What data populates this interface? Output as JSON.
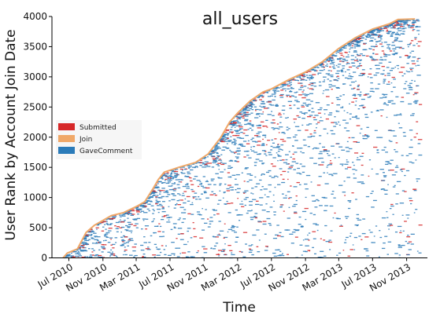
{
  "chart_data": {
    "type": "scatter",
    "title": "all_users",
    "xlabel": "Time",
    "ylabel": "User Rank by Account Join Date",
    "x_range": [
      "2010-05-01",
      "2014-01-15"
    ],
    "ylim": [
      0,
      4000
    ],
    "y_ticks": [
      0,
      500,
      1000,
      1500,
      2000,
      2500,
      3000,
      3500,
      4000
    ],
    "x_ticks": [
      {
        "date": "2010-07-01",
        "label": "Jul 2010"
      },
      {
        "date": "2010-11-01",
        "label": "Nov 2010"
      },
      {
        "date": "2011-03-01",
        "label": "Mar 2011"
      },
      {
        "date": "2011-07-01",
        "label": "Jul 2011"
      },
      {
        "date": "2011-11-01",
        "label": "Nov 2011"
      },
      {
        "date": "2012-03-01",
        "label": "Mar 2012"
      },
      {
        "date": "2012-07-01",
        "label": "Jul 2012"
      },
      {
        "date": "2012-11-01",
        "label": "Nov 2012"
      },
      {
        "date": "2013-03-01",
        "label": "Mar 2013"
      },
      {
        "date": "2013-07-01",
        "label": "Jul 2013"
      },
      {
        "date": "2013-11-01",
        "label": "Nov 2013"
      }
    ],
    "legend": {
      "placement": "center-left",
      "entries": [
        {
          "label": "Submitted",
          "color": "#d62728"
        },
        {
          "label": "Join",
          "color": "#f0a868"
        },
        {
          "label": "GaveComment",
          "color": "#2b7bb9"
        }
      ]
    },
    "grid": false,
    "series": [
      {
        "name": "Join",
        "color": "#f0a868",
        "points": [
          {
            "x": "2010-06-10",
            "y": 0
          },
          {
            "x": "2010-06-25",
            "y": 80
          },
          {
            "x": "2010-08-01",
            "y": 150
          },
          {
            "x": "2010-09-01",
            "y": 420
          },
          {
            "x": "2010-10-01",
            "y": 540
          },
          {
            "x": "2010-11-01",
            "y": 620
          },
          {
            "x": "2010-12-01",
            "y": 700
          },
          {
            "x": "2011-01-15",
            "y": 750
          },
          {
            "x": "2011-03-01",
            "y": 850
          },
          {
            "x": "2011-04-01",
            "y": 930
          },
          {
            "x": "2011-05-01",
            "y": 1150
          },
          {
            "x": "2011-05-20",
            "y": 1300
          },
          {
            "x": "2011-06-10",
            "y": 1420
          },
          {
            "x": "2011-08-01",
            "y": 1500
          },
          {
            "x": "2011-10-01",
            "y": 1580
          },
          {
            "x": "2011-11-15",
            "y": 1720
          },
          {
            "x": "2012-01-01",
            "y": 2000
          },
          {
            "x": "2012-02-01",
            "y": 2250
          },
          {
            "x": "2012-03-01",
            "y": 2400
          },
          {
            "x": "2012-04-15",
            "y": 2600
          },
          {
            "x": "2012-06-01",
            "y": 2750
          },
          {
            "x": "2012-07-01",
            "y": 2800
          },
          {
            "x": "2012-09-01",
            "y": 2950
          },
          {
            "x": "2012-11-01",
            "y": 3080
          },
          {
            "x": "2013-01-01",
            "y": 3250
          },
          {
            "x": "2013-03-01",
            "y": 3470
          },
          {
            "x": "2013-05-01",
            "y": 3650
          },
          {
            "x": "2013-07-01",
            "y": 3790
          },
          {
            "x": "2013-09-01",
            "y": 3880
          },
          {
            "x": "2013-10-01",
            "y": 3950
          },
          {
            "x": "2013-12-01",
            "y": 3960
          }
        ]
      },
      {
        "name": "Submitted",
        "color": "#d62728",
        "points": []
      },
      {
        "name": "GaveComment",
        "color": "#2b7bb9",
        "points": []
      }
    ]
  }
}
